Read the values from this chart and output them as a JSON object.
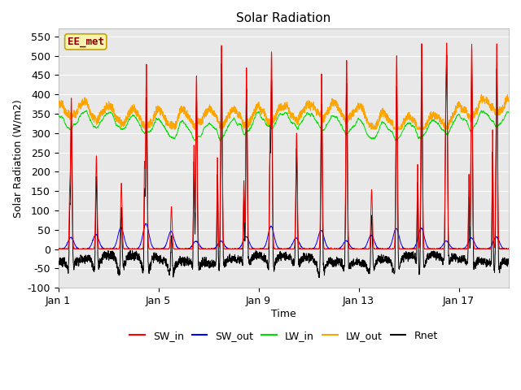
{
  "title": "Solar Radiation",
  "xlabel": "Time",
  "ylabel": "Solar Radiation (W/m2)",
  "ylim": [
    -100,
    570
  ],
  "yticks": [
    -100,
    -50,
    0,
    50,
    100,
    150,
    200,
    250,
    300,
    350,
    400,
    450,
    500,
    550
  ],
  "xtick_labels": [
    "Jan 1",
    "Jan 5",
    "Jan 9",
    "Jan 13",
    "Jan 17"
  ],
  "xtick_positions": [
    0,
    4,
    8,
    12,
    16
  ],
  "n_days": 18,
  "points_per_day": 144,
  "watermark": "EE_met",
  "legend": [
    "SW_in",
    "SW_out",
    "LW_in",
    "LW_out",
    "Rnet"
  ],
  "colors": {
    "SW_in": "#ff0000",
    "SW_out": "#0000ff",
    "LW_in": "#00dd00",
    "LW_out": "#ffa500",
    "Rnet": "#000000"
  },
  "bg_color": "#e8e8e8",
  "fig_bg": "#ffffff",
  "title_fontsize": 11,
  "label_fontsize": 9,
  "tick_fontsize": 9,
  "legend_fontsize": 9,
  "watermark_fontsize": 9
}
